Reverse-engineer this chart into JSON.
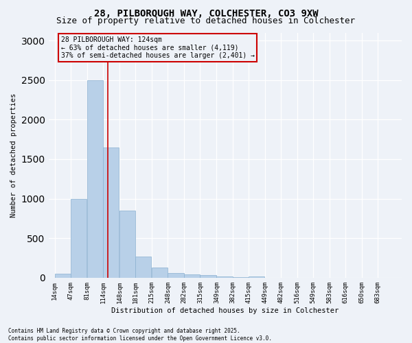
{
  "title1": "28, PILBOROUGH WAY, COLCHESTER, CO3 9XW",
  "title2": "Size of property relative to detached houses in Colchester",
  "xlabel": "Distribution of detached houses by size in Colchester",
  "ylabel": "Number of detached properties",
  "footnote1": "Contains HM Land Registry data © Crown copyright and database right 2025.",
  "footnote2": "Contains public sector information licensed under the Open Government Licence v3.0.",
  "annotation_line1": "28 PILBOROUGH WAY: 124sqm",
  "annotation_line2": "← 63% of detached houses are smaller (4,119)",
  "annotation_line3": "37% of semi-detached houses are larger (2,401) →",
  "bar_color": "#b8d0e8",
  "bar_edge_color": "#8ab0d0",
  "vline_color": "#cc0000",
  "vline_x_bin_index": 3,
  "bins_left": [
    14,
    47,
    81,
    114,
    148,
    181,
    215,
    248,
    282,
    315,
    349,
    382,
    415,
    449,
    482,
    516,
    549,
    583,
    616,
    650,
    683
  ],
  "bin_labels": [
    "14sqm",
    "47sqm",
    "81sqm",
    "114sqm",
    "148sqm",
    "181sqm",
    "215sqm",
    "248sqm",
    "282sqm",
    "315sqm",
    "349sqm",
    "382sqm",
    "415sqm",
    "449sqm",
    "482sqm",
    "516sqm",
    "549sqm",
    "583sqm",
    "616sqm",
    "650sqm",
    "683sqm"
  ],
  "values": [
    50,
    1000,
    2500,
    1650,
    850,
    270,
    130,
    55,
    40,
    30,
    18,
    8,
    15,
    0,
    0,
    0,
    0,
    0,
    0,
    0
  ],
  "ylim": [
    0,
    3100
  ],
  "yticks": [
    0,
    500,
    1000,
    1500,
    2000,
    2500,
    3000
  ],
  "background_color": "#eef2f8",
  "grid_color": "#ffffff",
  "box_color": "#cc0000",
  "title1_fontsize": 10,
  "title2_fontsize": 9,
  "annotation_fontsize": 7,
  "ylabel_fontsize": 7.5,
  "xlabel_fontsize": 7.5,
  "tick_fontsize": 6.5,
  "footnote_fontsize": 5.5
}
